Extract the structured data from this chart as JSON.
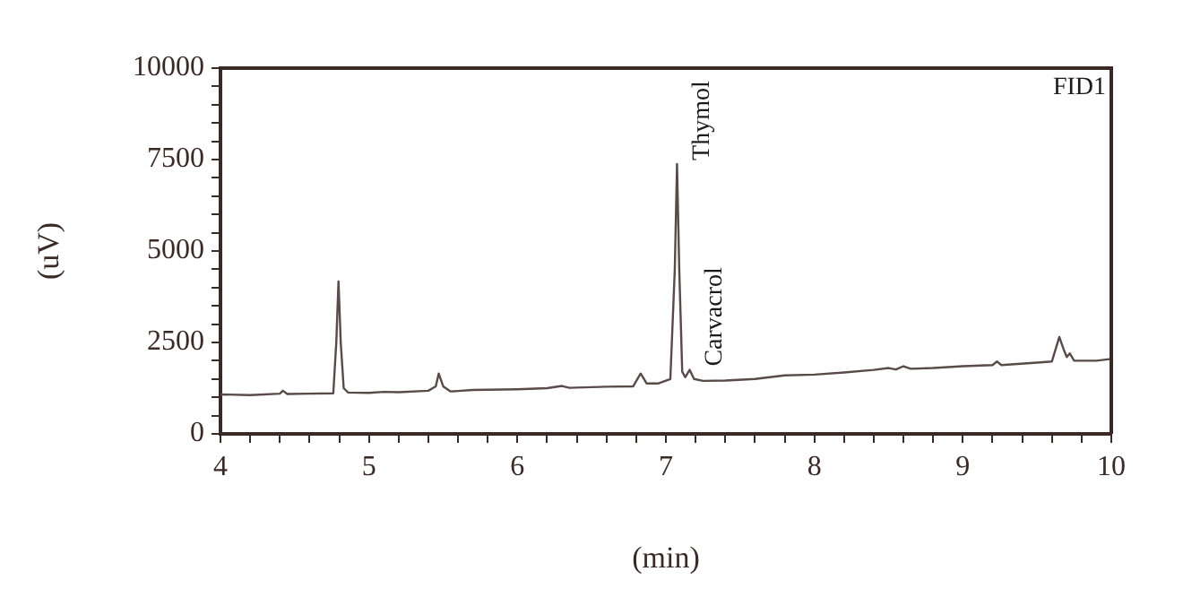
{
  "chart_data": {
    "type": "line",
    "xlabel": "(min)",
    "ylabel": "(uV)",
    "annotations": [
      "FID1",
      {
        "text": "Thymol",
        "x": 7.075,
        "y": 7380
      },
      {
        "text": "Carvacrol",
        "x": 7.16,
        "y": 1750
      }
    ],
    "xlim": [
      4,
      10
    ],
    "ylim": [
      0,
      10000
    ],
    "xticks": [
      4,
      {
        "value": 4.2,
        "label": null
      },
      {
        "value": 4.4,
        "label": null
      },
      {
        "value": 4.6,
        "label": null
      },
      {
        "value": 4.8,
        "label": null
      },
      5,
      {
        "value": 5.2,
        "label": null
      },
      {
        "value": 5.4,
        "label": null
      },
      {
        "value": 5.6,
        "label": null
      },
      {
        "value": 5.8,
        "label": null
      },
      6,
      {
        "value": 6.2,
        "label": null
      },
      {
        "value": 6.4,
        "label": null
      },
      {
        "value": 6.6,
        "label": null
      },
      {
        "value": 6.8,
        "label": null
      },
      7,
      {
        "value": 7.2,
        "label": null
      },
      {
        "value": 7.4,
        "label": null
      },
      {
        "value": 7.6,
        "label": null
      },
      {
        "value": 7.8,
        "label": null
      },
      8,
      {
        "value": 8.2,
        "label": null
      },
      {
        "value": 8.4,
        "label": null
      },
      {
        "value": 8.6,
        "label": null
      },
      {
        "value": 8.8,
        "label": null
      },
      9,
      {
        "value": 9.2,
        "label": null
      },
      {
        "value": 9.4,
        "label": null
      },
      {
        "value": 9.6,
        "label": null
      },
      {
        "value": 9.8,
        "label": null
      },
      10
    ],
    "yticks": [
      0,
      {
        "value": 500,
        "label": null
      },
      {
        "value": 1000,
        "label": null
      },
      {
        "value": 1500,
        "label": null
      },
      {
        "value": 2000,
        "label": null
      },
      2500,
      {
        "value": 3000,
        "label": null
      },
      {
        "value": 3500,
        "label": null
      },
      {
        "value": 4000,
        "label": null
      },
      {
        "value": 4500,
        "label": null
      },
      5000,
      {
        "value": 5500,
        "label": null
      },
      {
        "value": 6000,
        "label": null
      },
      {
        "value": 6500,
        "label": null
      },
      {
        "value": 7000,
        "label": null
      },
      7500,
      {
        "value": 8000,
        "label": null
      },
      {
        "value": 8500,
        "label": null
      },
      {
        "value": 9000,
        "label": null
      },
      {
        "value": 9500,
        "label": null
      },
      10000
    ],
    "grid": false,
    "legend": false,
    "marker": "none",
    "line_style": "solid",
    "x": [
      4.0,
      4.2,
      4.4,
      4.42,
      4.45,
      4.6,
      4.76,
      4.78,
      4.795,
      4.81,
      4.83,
      4.86,
      5.0,
      5.1,
      5.2,
      5.4,
      5.45,
      5.47,
      5.5,
      5.55,
      5.7,
      6.0,
      6.2,
      6.3,
      6.35,
      6.6,
      6.78,
      6.83,
      6.87,
      6.95,
      7.03,
      7.06,
      7.075,
      7.09,
      7.11,
      7.13,
      7.16,
      7.19,
      7.25,
      7.4,
      7.6,
      7.8,
      8.0,
      8.2,
      8.4,
      8.5,
      8.55,
      8.6,
      8.65,
      8.8,
      9.0,
      9.2,
      9.23,
      9.26,
      9.5,
      9.6,
      9.65,
      9.68,
      9.7,
      9.72,
      9.75,
      9.9,
      10.0
    ],
    "series": [
      {
        "color": "#5a4a48",
        "values": [
          1080,
          1060,
          1100,
          1180,
          1090,
          1100,
          1110,
          2500,
          4170,
          2500,
          1250,
          1130,
          1120,
          1150,
          1140,
          1180,
          1300,
          1650,
          1300,
          1160,
          1200,
          1220,
          1250,
          1310,
          1260,
          1290,
          1300,
          1650,
          1380,
          1380,
          1500,
          4500,
          7380,
          4500,
          1700,
          1550,
          1750,
          1500,
          1450,
          1460,
          1500,
          1600,
          1620,
          1680,
          1750,
          1800,
          1760,
          1850,
          1780,
          1800,
          1850,
          1880,
          1980,
          1880,
          1950,
          1980,
          2650,
          2300,
          2100,
          2200,
          2000,
          2000,
          2050
        ]
      }
    ]
  }
}
